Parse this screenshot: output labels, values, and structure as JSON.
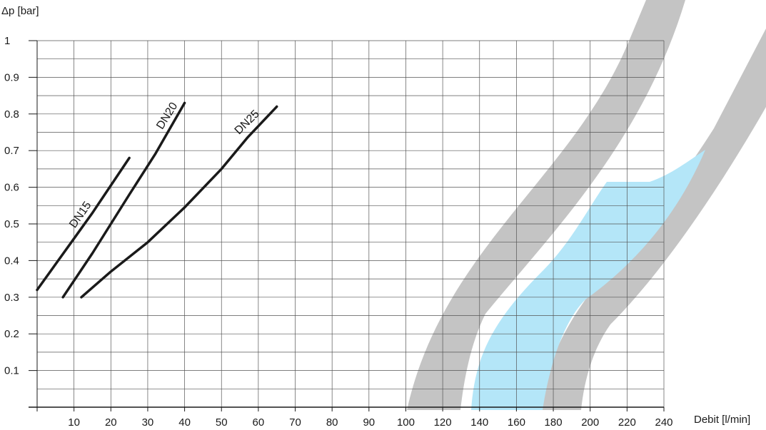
{
  "chart_data": {
    "type": "line",
    "ylabel": "Δp [bar]",
    "xlabel": "Debit [l/min]",
    "ylim": [
      0,
      1
    ],
    "y_ticks": [
      "0.1",
      "0.2",
      "0.3",
      "0.4",
      "0.5",
      "0.6",
      "0.7",
      "0.8",
      "0.9",
      "1"
    ],
    "x_ticks": [
      "10",
      "20",
      "30",
      "40",
      "50",
      "60",
      "70",
      "80",
      "90",
      "100",
      "120",
      "140",
      "160",
      "180",
      "200",
      "220",
      "240"
    ],
    "grid": true,
    "series": [
      {
        "name": "DN15",
        "x": [
          0,
          5,
          10,
          15,
          20,
          25
        ],
        "y": [
          0.32,
          0.39,
          0.46,
          0.53,
          0.605,
          0.68
        ]
      },
      {
        "name": "DN20",
        "x": [
          7,
          15,
          25,
          32,
          40
        ],
        "y": [
          0.3,
          0.42,
          0.58,
          0.69,
          0.83
        ]
      },
      {
        "name": "DN25",
        "x": [
          12,
          20,
          30,
          40,
          50,
          57,
          65
        ],
        "y": [
          0.3,
          0.37,
          0.45,
          0.545,
          0.65,
          0.735,
          0.82
        ]
      }
    ],
    "colors": {
      "line": "#1a1a1a",
      "grid": "#555555",
      "band": "#c4c4c4",
      "highlight": "#b4e6f8"
    }
  }
}
